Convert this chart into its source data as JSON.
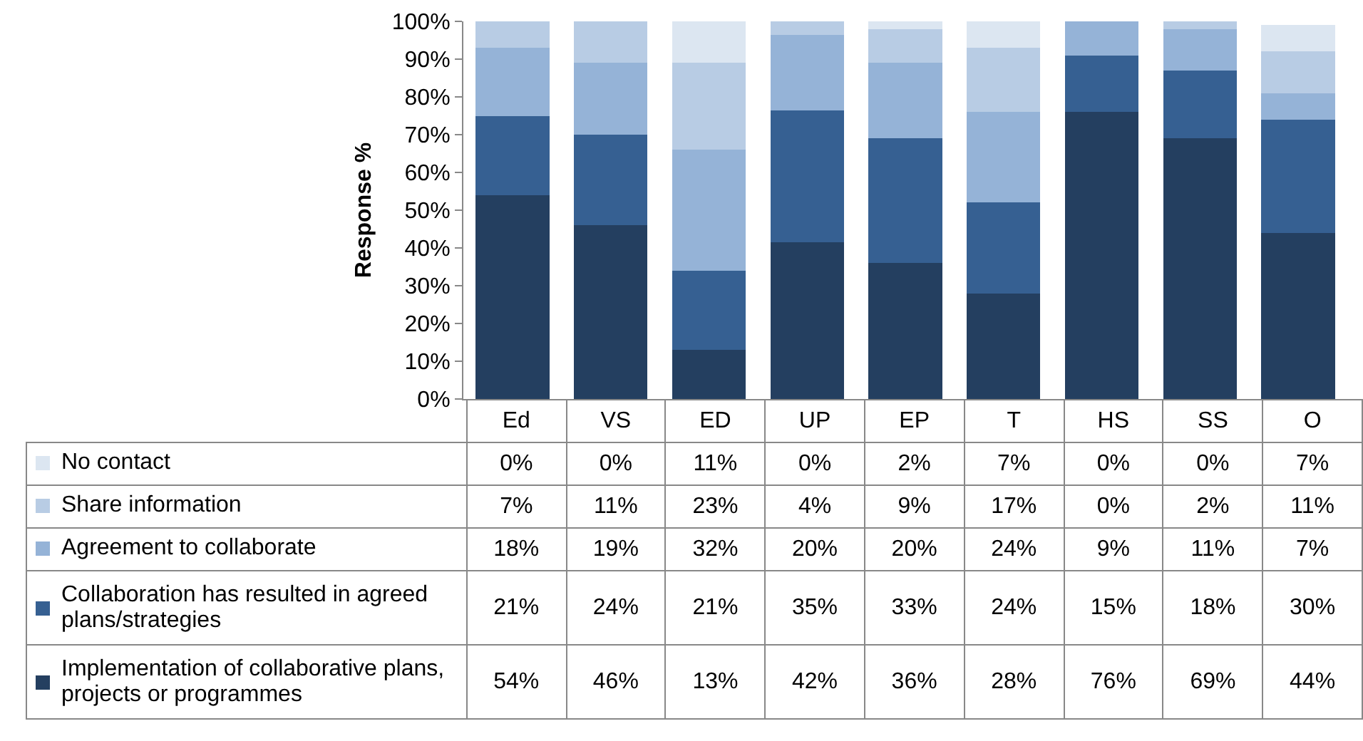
{
  "chart_data": {
    "type": "bar",
    "stacked": true,
    "ylabel": "Response %",
    "categories": [
      "Ed",
      "VS",
      "ED",
      "UP",
      "EP",
      "T",
      "HS",
      "SS",
      "O"
    ],
    "series": [
      {
        "name": "Implementation of collaborative plans, projects or programmes",
        "color": "#243f60",
        "values": [
          54,
          46,
          13,
          41.6,
          36,
          28,
          76,
          69,
          44
        ],
        "value_labels": [
          "54%",
          "46%",
          "13%",
          "42%",
          "36%",
          "28%",
          "76%",
          "69%",
          "44%"
        ]
      },
      {
        "name": "Collaboration has resulted in agreed plans/strategies",
        "color": "#366092",
        "values": [
          21,
          24,
          21,
          34.9,
          33,
          24,
          15,
          18,
          30
        ],
        "value_labels": [
          "21%",
          "24%",
          "21%",
          "35%",
          "33%",
          "24%",
          "15%",
          "18%",
          "30%"
        ]
      },
      {
        "name": "Agreement to collaborate",
        "color": "#95b3d7",
        "values": [
          18,
          19,
          32,
          19.9,
          20,
          24,
          9,
          11,
          7
        ],
        "value_labels": [
          "18%",
          "19%",
          "32%",
          "20%",
          "20%",
          "24%",
          "9%",
          "11%",
          "7%"
        ]
      },
      {
        "name": "Share information",
        "color": "#b8cce4",
        "values": [
          7,
          11,
          23,
          3.6,
          9,
          17,
          0,
          2,
          11
        ],
        "value_labels": [
          "7%",
          "11%",
          "23%",
          "4%",
          "9%",
          "17%",
          "0%",
          "2%",
          "11%"
        ]
      },
      {
        "name": "No contact",
        "color": "#dce6f1",
        "values": [
          0,
          0,
          11,
          0,
          2,
          7,
          0,
          0,
          7
        ],
        "value_labels": [
          "0%",
          "0%",
          "11%",
          "0%",
          "2%",
          "7%",
          "0%",
          "0%",
          "7%"
        ]
      }
    ],
    "ylim": [
      0,
      100
    ],
    "yticks": [
      {
        "value": 0,
        "label": "0%"
      },
      {
        "value": 10,
        "label": "10%"
      },
      {
        "value": 20,
        "label": "20%"
      },
      {
        "value": 30,
        "label": "30%"
      },
      {
        "value": 40,
        "label": "40%"
      },
      {
        "value": 50,
        "label": "50%"
      },
      {
        "value": 60,
        "label": "60%"
      },
      {
        "value": 70,
        "label": "70%"
      },
      {
        "value": 80,
        "label": "80%"
      },
      {
        "value": 90,
        "label": "90%"
      },
      {
        "value": 100,
        "label": "100%"
      }
    ],
    "legend": "bottom left"
  }
}
